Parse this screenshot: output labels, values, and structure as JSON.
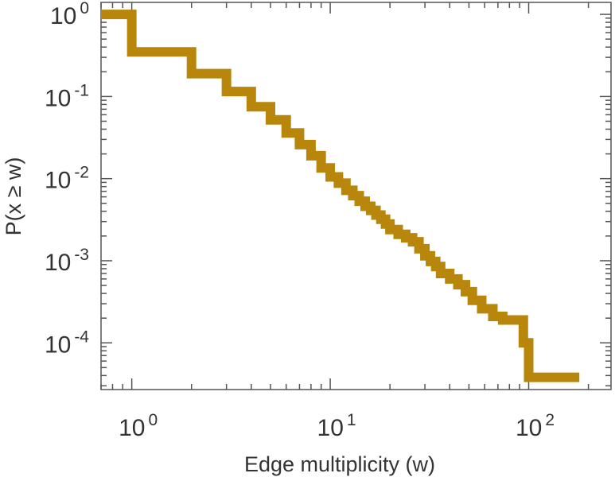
{
  "chart_data": {
    "type": "line",
    "title": "",
    "xlabel": "Edge multiplicity (w)",
    "ylabel": "P(x ≥ w)",
    "x_scale": "log",
    "y_scale": "log",
    "xlim": [
      0.7,
      260
    ],
    "ylim": [
      2.7e-05,
      1.4
    ],
    "grid": false,
    "legend": "none",
    "x_ticks": [
      {
        "value": 1,
        "base": "10",
        "exp": "0"
      },
      {
        "value": 10,
        "base": "10",
        "exp": "1"
      },
      {
        "value": 100,
        "base": "10",
        "exp": "2"
      }
    ],
    "y_ticks": [
      {
        "value": 1,
        "base": "10",
        "exp": "0"
      },
      {
        "value": 0.1,
        "base": "10",
        "exp": "-1"
      },
      {
        "value": 0.01,
        "base": "10",
        "exp": "-2"
      },
      {
        "value": 0.001,
        "base": "10",
        "exp": "-3"
      },
      {
        "value": 0.0001,
        "base": "10",
        "exp": "-4"
      }
    ],
    "series": [
      {
        "color": "#b8860b",
        "style": "step",
        "x": [
          1,
          2,
          3,
          4,
          5,
          6,
          7,
          8,
          9,
          10,
          11,
          12,
          13,
          14,
          15,
          16,
          17,
          18,
          19,
          20,
          22,
          24,
          26,
          28,
          30,
          32,
          34,
          36,
          40,
          44,
          48,
          52,
          58,
          66,
          74,
          82,
          94,
          100,
          110,
          180
        ],
        "y": [
          1.0,
          0.35,
          0.19,
          0.115,
          0.075,
          0.052,
          0.036,
          0.026,
          0.019,
          0.0135,
          0.0105,
          0.0088,
          0.0072,
          0.0062,
          0.0053,
          0.0046,
          0.0041,
          0.0036,
          0.0032,
          0.0028,
          0.0024,
          0.0021,
          0.0019,
          0.0017,
          0.0014,
          0.00115,
          0.00098,
          0.00085,
          0.0007,
          0.0006,
          0.00051,
          0.00042,
          0.00033,
          0.00026,
          0.00021,
          0.00019,
          0.00019,
          0.0001,
          3.8e-05,
          3.8e-05
        ]
      }
    ]
  }
}
